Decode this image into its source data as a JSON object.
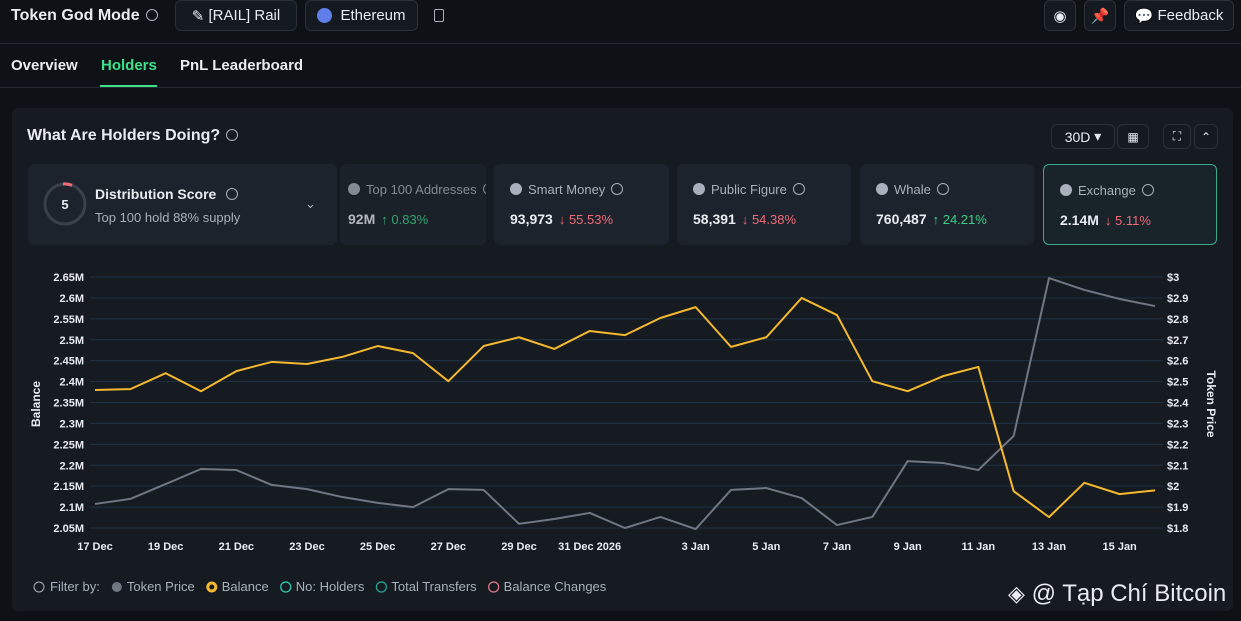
{
  "header": {
    "title": "Token God Mode",
    "token": "[RAIL] Rail",
    "chain": "Ethereum",
    "feedback": "Feedback"
  },
  "tabs": [
    "Overview",
    "Holders",
    "PnL Leaderboard"
  ],
  "panel": {
    "title": "What Are Holders Doing?",
    "period": "30D"
  },
  "distribution": {
    "score": "5",
    "title": "Distribution Score",
    "subtitle": "Top 100 hold 88% supply"
  },
  "stats": [
    {
      "label": "Top 100 Addresses",
      "value": "92M",
      "change": "↑ 0.83%",
      "direction": "up"
    },
    {
      "label": "Smart Money",
      "value": "93,973",
      "change": "↓ 55.53%",
      "direction": "down"
    },
    {
      "label": "Public Figure",
      "value": "58,391",
      "change": "↓ 54.38%",
      "direction": "down"
    },
    {
      "label": "Whale",
      "value": "760,487",
      "change": "↑ 24.21%",
      "direction": "up"
    },
    {
      "label": "Exchange",
      "value": "2.14M",
      "change": "↓ 5.11%",
      "direction": "down"
    }
  ],
  "chart_data": {
    "type": "line",
    "ylabel": "Balance",
    "y2label": "Token Price",
    "categories": [
      "17 Dec",
      null,
      "19 Dec",
      null,
      "21 Dec",
      null,
      "23 Dec",
      null,
      "25 Dec",
      null,
      "27 Dec",
      null,
      "29 Dec",
      null,
      "31 Dec 2026",
      null,
      null,
      "3 Jan",
      null,
      "5 Jan",
      null,
      "7 Jan",
      null,
      "9 Jan",
      null,
      "11 Jan",
      null,
      "13 Jan",
      null,
      "15 Jan",
      null
    ],
    "series": [
      {
        "name": "Token Price",
        "color": "#6f7783",
        "axis": "y2",
        "values": [
          1.915,
          1.939,
          2.01,
          2.082,
          2.077,
          2.006,
          1.986,
          1.948,
          1.92,
          1.9,
          1.986,
          1.982,
          1.82,
          1.843,
          1.872,
          1.8,
          1.853,
          1.795,
          1.982,
          1.991,
          1.943,
          1.814,
          1.853,
          2.12,
          2.111,
          2.077,
          2.24,
          2.995,
          2.938,
          2.895,
          2.861
        ]
      },
      {
        "name": "Balance",
        "color": "#f5b82e",
        "values": [
          2380000,
          2382000,
          2420000,
          2377000,
          2425000,
          2447000,
          2442000,
          2459000,
          2485000,
          2468000,
          2401000,
          2485000,
          2506000,
          2478000,
          2521000,
          2511000,
          2552000,
          2578000,
          2483000,
          2506000,
          2600000,
          2559000,
          2401000,
          2377000,
          2413000,
          2435000,
          2138000,
          2076000,
          2158000,
          2131000,
          2140000
        ]
      }
    ],
    "ylim": [
      2050000,
      2650000
    ],
    "yticks": [
      {
        "value": 2050000,
        "label": "2.05M"
      },
      {
        "value": 2100000,
        "label": "2.1M"
      },
      {
        "value": 2150000,
        "label": "2.15M"
      },
      {
        "value": 2200000,
        "label": "2.2M"
      },
      {
        "value": 2250000,
        "label": "2.25M"
      },
      {
        "value": 2300000,
        "label": "2.3M"
      },
      {
        "value": 2350000,
        "label": "2.35M"
      },
      {
        "value": 2400000,
        "label": "2.4M"
      },
      {
        "value": 2450000,
        "label": "2.45M"
      },
      {
        "value": 2500000,
        "label": "2.5M"
      },
      {
        "value": 2550000,
        "label": "2.55M"
      },
      {
        "value": 2600000,
        "label": "2.6M"
      },
      {
        "value": 2650000,
        "label": "2.65M"
      }
    ],
    "y2lim": [
      1.8,
      3
    ],
    "y2ticks": [
      {
        "value": 1.8,
        "label": "$1.8"
      },
      {
        "value": 1.9,
        "label": "$1.9"
      },
      {
        "value": 2,
        "label": "$2"
      },
      {
        "value": 2.1,
        "label": "$2.1"
      },
      {
        "value": 2.2,
        "label": "$2.2"
      },
      {
        "value": 2.3,
        "label": "$2.3"
      },
      {
        "value": 2.4,
        "label": "$2.4"
      },
      {
        "value": 2.5,
        "label": "$2.5"
      },
      {
        "value": 2.6,
        "label": "$2.6"
      },
      {
        "value": 2.7,
        "label": "$2.7"
      },
      {
        "value": 2.8,
        "label": "$2.8"
      },
      {
        "value": 2.9,
        "label": "$2.9"
      },
      {
        "value": 3,
        "label": "$3"
      }
    ],
    "grid": true,
    "filter_label": "Filter by:",
    "inactive_filters": [
      {
        "name": "No: Holders",
        "color": "#2fd0b5"
      },
      {
        "name": "Total Transfers",
        "color": "#2aa79b"
      },
      {
        "name": "Balance Changes",
        "color": "#e07a86"
      }
    ]
  },
  "watermark": "@ Tạp Chí Bitcoin"
}
